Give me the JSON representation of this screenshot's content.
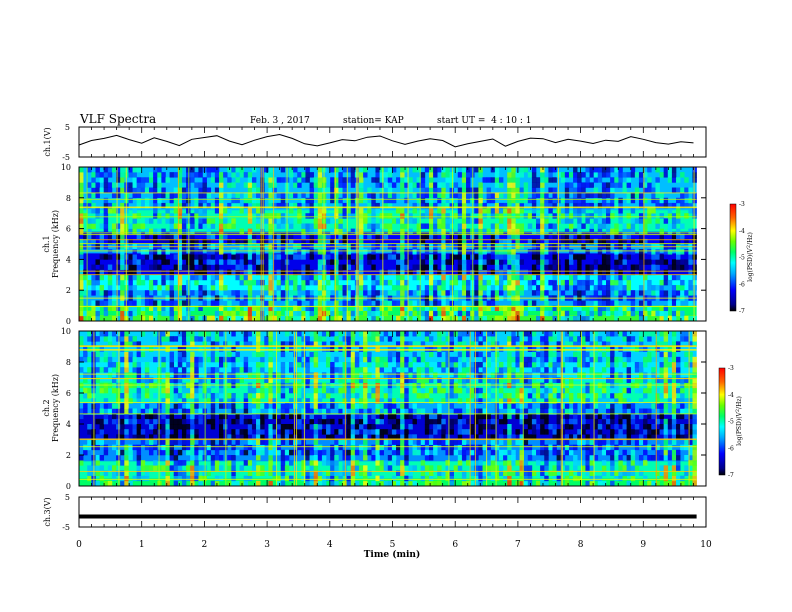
{
  "header": {
    "title": "VLF Spectra",
    "date": "Feb. 3 , 2017",
    "station": "station= KAP",
    "start_ut": "start UT =  4 : 10 : 1"
  },
  "chart_data": [
    {
      "type": "line",
      "name": "ch1-voltage",
      "ylabel": "ch.1(V)",
      "ylim": [
        -5,
        5
      ],
      "yticks": [
        "5",
        "-5"
      ],
      "xlim": [
        0,
        10
      ],
      "x": [
        0.0,
        0.2,
        0.4,
        0.6,
        0.8,
        1.0,
        1.2,
        1.4,
        1.6,
        1.8,
        2.0,
        2.2,
        2.4,
        2.6,
        2.8,
        3.0,
        3.2,
        3.4,
        3.6,
        3.8,
        4.0,
        4.2,
        4.4,
        4.6,
        4.8,
        5.0,
        5.2,
        5.4,
        5.6,
        5.8,
        6.0,
        6.2,
        6.4,
        6.6,
        6.8,
        7.0,
        7.2,
        7.4,
        7.6,
        7.8,
        8.0,
        8.2,
        8.4,
        8.6,
        8.8,
        9.0,
        9.2,
        9.4,
        9.6,
        9.8
      ],
      "values": [
        -1.0,
        0.5,
        1.2,
        2.2,
        0.8,
        -0.4,
        1.4,
        0.2,
        -1.2,
        0.9,
        1.5,
        2.1,
        0.3,
        -0.9,
        0.6,
        1.8,
        2.5,
        1.2,
        -0.6,
        -1.3,
        -0.3,
        0.8,
        0.4,
        1.6,
        2.0,
        0.4,
        -0.8,
        0.3,
        1.1,
        0.5,
        -1.6,
        -0.6,
        0.2,
        1.0,
        -1.4,
        0.2,
        1.3,
        1.1,
        -0.2,
        0.9,
        0.3,
        -0.5,
        0.6,
        0.2,
        1.8,
        0.9,
        -0.2,
        -0.7,
        0.1,
        -0.3
      ]
    },
    {
      "type": "heatmap",
      "name": "ch1-spectrogram",
      "ylabel": "ch.1\nFrequency (kHz)",
      "ylim": [
        0,
        10
      ],
      "yticks": [
        "0",
        "2",
        "4",
        "6",
        "8",
        "10"
      ],
      "xlim": [
        0,
        10
      ],
      "data_end_min": 9.85,
      "colorbar": {
        "label": "log(PSD)(V²/Hz)",
        "range": [
          -7,
          -3
        ],
        "ticks": [
          "-3",
          "-4",
          "-5",
          "-6",
          "-7"
        ]
      },
      "band_levels_kHz": [
        [
          0.0,
          0.4,
          -4.6
        ],
        [
          0.4,
          1.0,
          -4.8
        ],
        [
          1.0,
          2.0,
          -5.6
        ],
        [
          2.0,
          3.0,
          -5.2
        ],
        [
          3.0,
          4.4,
          -6.3
        ],
        [
          4.4,
          5.0,
          -5.6
        ],
        [
          5.0,
          5.8,
          -6.2
        ],
        [
          5.8,
          7.2,
          -5.0
        ],
        [
          7.2,
          10.0,
          -5.5
        ]
      ]
    },
    {
      "type": "heatmap",
      "name": "ch2-spectrogram",
      "ylabel": "ch.2\nFrequency (kHz)",
      "ylim": [
        0,
        10
      ],
      "yticks": [
        "0",
        "2",
        "4",
        "6",
        "8",
        "10"
      ],
      "xlim": [
        0,
        10
      ],
      "data_end_min": 9.85,
      "colorbar": {
        "label": "log(PSD)(V²/Hz)",
        "range": [
          -7,
          -3
        ],
        "ticks": [
          "-3",
          "-4",
          "-5",
          "-6",
          "-7"
        ]
      },
      "band_levels_kHz": [
        [
          0.0,
          0.5,
          -4.8
        ],
        [
          0.5,
          1.6,
          -5.0
        ],
        [
          1.6,
          3.0,
          -5.7
        ],
        [
          3.0,
          4.6,
          -6.4
        ],
        [
          4.6,
          5.4,
          -5.6
        ],
        [
          5.4,
          6.8,
          -5.0
        ],
        [
          6.8,
          8.0,
          -5.3
        ],
        [
          8.0,
          10.0,
          -5.4
        ]
      ]
    },
    {
      "type": "line",
      "name": "ch3-voltage",
      "ylabel": "ch.3(V)",
      "ylim": [
        -5,
        5
      ],
      "yticks": [
        "5",
        "-5"
      ],
      "xlim": [
        0,
        10
      ],
      "xlabel": "Time (min)",
      "xticks": [
        "0",
        "1",
        "2",
        "3",
        "4",
        "5",
        "6",
        "7",
        "8",
        "9",
        "10"
      ],
      "x": [
        0.0,
        9.85
      ],
      "values": [
        -1.5,
        -1.5
      ]
    }
  ],
  "colors": {
    "axes": "#000000",
    "trace": "#000000",
    "background": "#ffffff"
  }
}
